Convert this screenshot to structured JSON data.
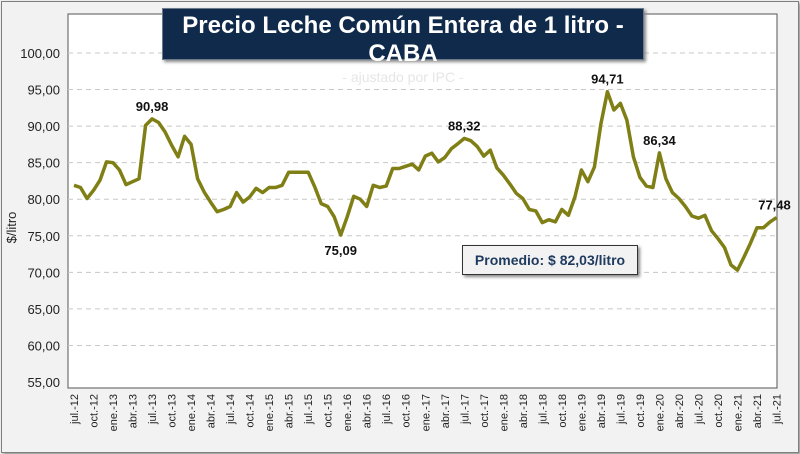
{
  "chart_data": {
    "type": "line",
    "title": "Precio Leche Común Entera de 1 litro - CABA",
    "subtitle": "- ajustado por IPC -",
    "ylabel": "$/litro",
    "xlabel": "",
    "ylim": [
      55,
      100
    ],
    "yticks": [
      "55,00",
      "60,00",
      "65,00",
      "70,00",
      "75,00",
      "80,00",
      "85,00",
      "90,00",
      "95,00",
      "100,00"
    ],
    "grid": true,
    "line_color": "#7f7f16",
    "x_start": "jul.-12",
    "x_end": "jul.-21",
    "frequency": "monthly",
    "xtick_labels": [
      "jul.-12",
      "oct.-12",
      "ene.-13",
      "abr.-13",
      "jul.-13",
      "oct.-13",
      "ene.-14",
      "abr.-14",
      "jul.-14",
      "oct.-14",
      "ene.-15",
      "abr.-15",
      "jul.-15",
      "oct.-15",
      "ene.-16",
      "abr.-16",
      "jul.-16",
      "oct.-16",
      "ene.-17",
      "abr.-17",
      "jul.-17",
      "oct.-17",
      "ene.-18",
      "abr.-18",
      "jul.-18",
      "oct.-18",
      "ene.-19",
      "abr.-19",
      "jul.-19",
      "oct.-19",
      "ene.-20",
      "abr.-20",
      "jul.-20",
      "oct.-20",
      "ene.-21",
      "abr.-21",
      "jul.-21"
    ],
    "values": [
      81.9,
      81.6,
      80.1,
      81.2,
      82.6,
      85.1,
      85.0,
      84.0,
      82.0,
      82.4,
      82.8,
      90.1,
      90.98,
      90.5,
      89.2,
      87.4,
      85.8,
      88.6,
      87.5,
      82.8,
      81.0,
      79.6,
      78.3,
      78.6,
      79.0,
      80.9,
      79.6,
      80.3,
      81.5,
      80.9,
      81.6,
      81.6,
      81.9,
      83.7,
      83.7,
      83.7,
      83.7,
      81.7,
      79.4,
      79.0,
      77.6,
      75.09,
      77.6,
      80.4,
      80.0,
      79.0,
      81.9,
      81.6,
      81.8,
      84.2,
      84.2,
      84.5,
      84.8,
      84.0,
      85.9,
      86.3,
      85.1,
      85.7,
      86.9,
      87.6,
      88.32,
      88.0,
      87.2,
      85.9,
      86.7,
      84.3,
      83.3,
      82.1,
      80.8,
      80.1,
      78.6,
      78.4,
      76.8,
      77.2,
      76.9,
      78.6,
      77.8,
      80.3,
      84.0,
      82.4,
      84.4,
      90.3,
      94.71,
      92.2,
      93.1,
      90.8,
      85.8,
      83.0,
      81.8,
      81.6,
      86.34,
      82.8,
      80.9,
      80.1,
      79.0,
      77.7,
      77.4,
      77.8,
      75.7,
      74.6,
      73.4,
      71.0,
      70.3,
      72.1,
      74.0,
      76.1,
      76.1,
      76.9,
      77.48
    ],
    "annotations": [
      {
        "index": 12,
        "label": "90,98",
        "position": "above"
      },
      {
        "index": 41,
        "label": "75,09",
        "position": "below"
      },
      {
        "index": 60,
        "label": "88,32",
        "position": "above"
      },
      {
        "index": 82,
        "label": "94,71",
        "position": "above"
      },
      {
        "index": 90,
        "label": "86,34",
        "position": "above"
      },
      {
        "index": 108,
        "label": "77,48",
        "position": "above"
      }
    ],
    "average_label": "Promedio: $ 82,03/litro",
    "average_value": 82.03
  }
}
